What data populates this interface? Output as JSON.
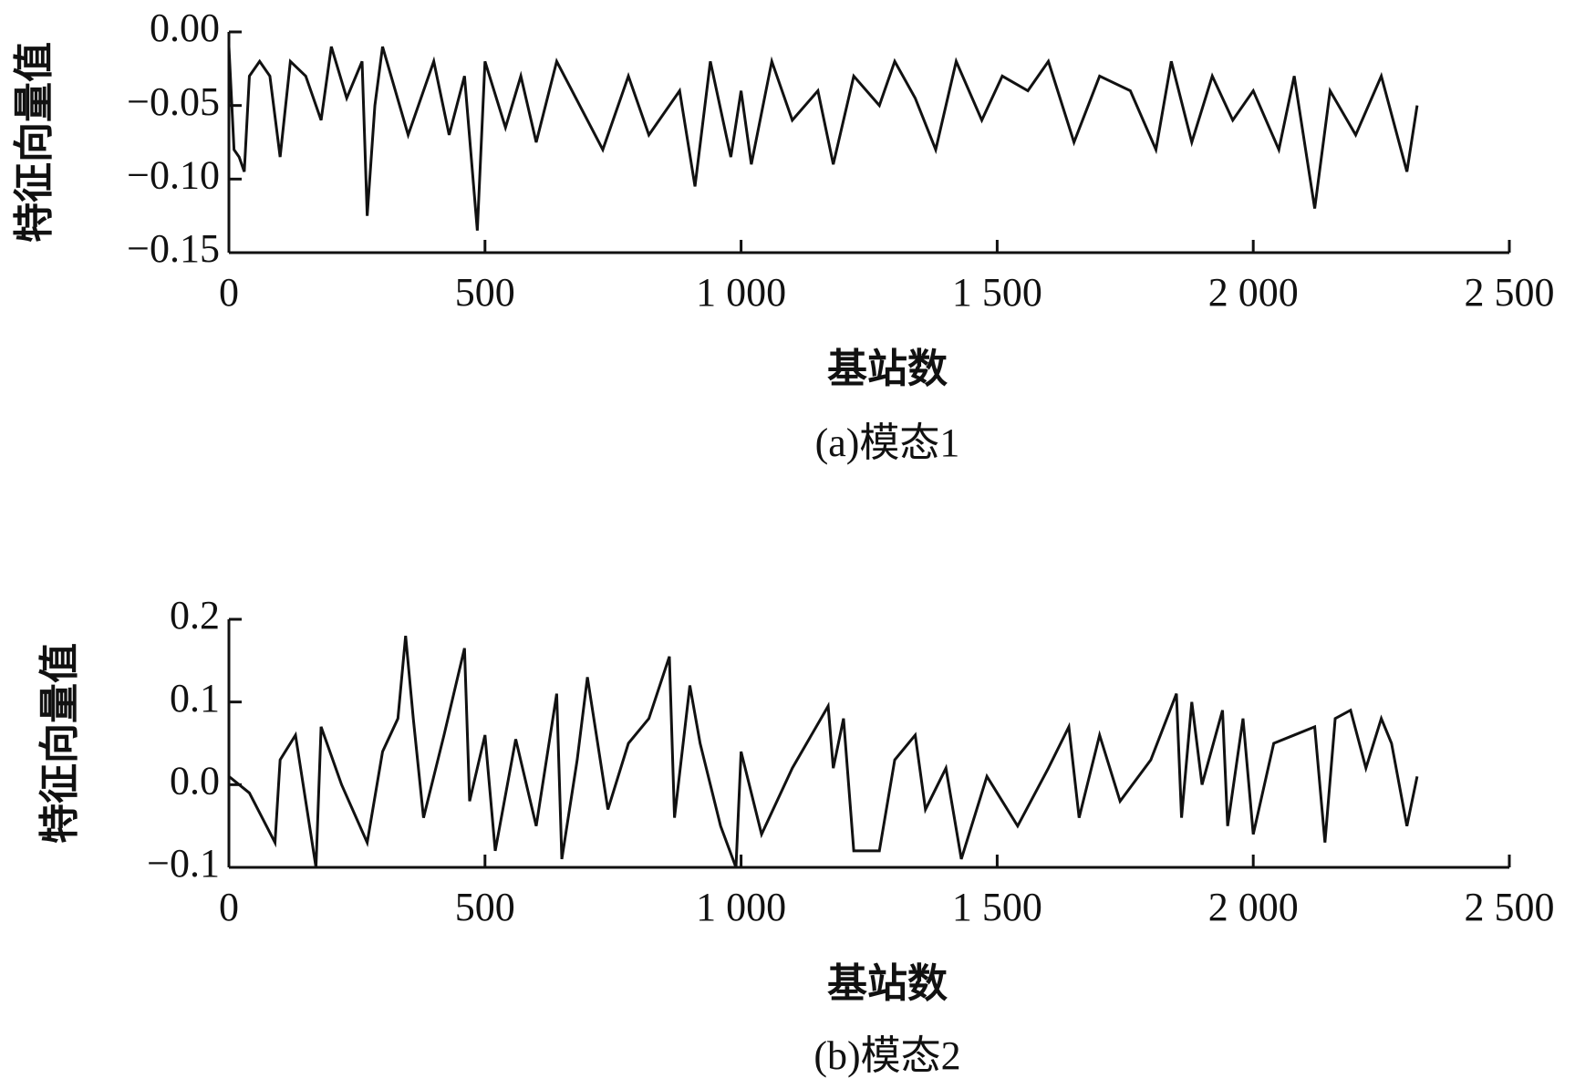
{
  "chart_data": [
    {
      "type": "line",
      "caption": "(a)模态1",
      "xlabel": "基站数",
      "ylabel": "特征向量值",
      "color": "#111111",
      "xlim": [
        0,
        2500
      ],
      "ylim": [
        -0.15,
        0
      ],
      "xticks": [
        0,
        500,
        {
          "value": 1000,
          "label": "1 000"
        },
        {
          "value": 1500,
          "label": "1 500"
        },
        {
          "value": 2000,
          "label": "2 000"
        },
        {
          "value": 2500,
          "label": "2 500"
        }
      ],
      "yticks": [
        {
          "value": 0,
          "label": "0.00"
        },
        {
          "value": -0.05,
          "label": "−0.05"
        },
        {
          "value": -0.1,
          "label": "−0.10"
        },
        {
          "value": -0.15,
          "label": "−0.15"
        }
      ],
      "x": [
        0,
        10,
        20,
        30,
        40,
        60,
        80,
        100,
        120,
        150,
        180,
        200,
        230,
        260,
        270,
        285,
        300,
        350,
        400,
        430,
        460,
        485,
        500,
        540,
        570,
        600,
        640,
        700,
        730,
        780,
        820,
        880,
        910,
        940,
        980,
        1000,
        1020,
        1060,
        1100,
        1150,
        1180,
        1220,
        1270,
        1300,
        1340,
        1380,
        1420,
        1470,
        1510,
        1560,
        1600,
        1650,
        1700,
        1760,
        1810,
        1840,
        1880,
        1920,
        1960,
        2000,
        2050,
        2080,
        2120,
        2150,
        2200,
        2250,
        2300,
        2320
      ],
      "values": [
        -0.01,
        -0.08,
        -0.085,
        -0.095,
        -0.03,
        -0.02,
        -0.03,
        -0.085,
        -0.02,
        -0.03,
        -0.06,
        -0.01,
        -0.045,
        -0.02,
        -0.125,
        -0.05,
        -0.01,
        -0.07,
        -0.02,
        -0.07,
        -0.03,
        -0.135,
        -0.02,
        -0.065,
        -0.03,
        -0.075,
        -0.02,
        -0.06,
        -0.08,
        -0.03,
        -0.07,
        -0.04,
        -0.105,
        -0.02,
        -0.085,
        -0.04,
        -0.09,
        -0.02,
        -0.06,
        -0.04,
        -0.09,
        -0.03,
        -0.05,
        -0.02,
        -0.045,
        -0.08,
        -0.02,
        -0.06,
        -0.03,
        -0.04,
        -0.02,
        -0.075,
        -0.03,
        -0.04,
        -0.08,
        -0.02,
        -0.075,
        -0.03,
        -0.06,
        -0.04,
        -0.08,
        -0.03,
        -0.12,
        -0.04,
        -0.07,
        -0.03,
        -0.095,
        -0.05
      ]
    },
    {
      "type": "line",
      "caption": "(b)模态2",
      "xlabel": "基站数",
      "ylabel": "特征向量值",
      "color": "#111111",
      "xlim": [
        0,
        2500
      ],
      "ylim": [
        -0.1,
        0.2
      ],
      "xticks": [
        0,
        500,
        {
          "value": 1000,
          "label": "1 000"
        },
        {
          "value": 1500,
          "label": "1 500"
        },
        {
          "value": 2000,
          "label": "2 000"
        },
        {
          "value": 2500,
          "label": "2 500"
        }
      ],
      "yticks": [
        {
          "value": 0.2,
          "label": "0.2"
        },
        {
          "value": 0.1,
          "label": "0.1"
        },
        {
          "value": 0,
          "label": "0.0"
        },
        {
          "value": -0.1,
          "label": "−0.1"
        }
      ],
      "x": [
        0,
        40,
        90,
        100,
        130,
        150,
        170,
        180,
        220,
        270,
        300,
        330,
        345,
        360,
        380,
        420,
        460,
        470,
        500,
        520,
        560,
        600,
        640,
        650,
        680,
        700,
        740,
        780,
        820,
        860,
        870,
        900,
        920,
        960,
        990,
        1000,
        1040,
        1100,
        1170,
        1180,
        1200,
        1220,
        1270,
        1300,
        1340,
        1360,
        1400,
        1430,
        1480,
        1540,
        1600,
        1640,
        1660,
        1700,
        1740,
        1800,
        1850,
        1860,
        1880,
        1900,
        1940,
        1950,
        1980,
        2000,
        2040,
        2080,
        2120,
        2140,
        2160,
        2190,
        2220,
        2250,
        2270,
        2300,
        2320
      ],
      "values": [
        0.01,
        -0.01,
        -0.07,
        0.03,
        0.06,
        -0.02,
        -0.1,
        0.07,
        0.0,
        -0.07,
        0.04,
        0.08,
        0.18,
        0.08,
        -0.04,
        0.06,
        0.165,
        -0.02,
        0.06,
        -0.08,
        0.055,
        -0.05,
        0.11,
        -0.09,
        0.03,
        0.13,
        -0.03,
        0.05,
        0.08,
        0.155,
        -0.04,
        0.12,
        0.05,
        -0.05,
        -0.1,
        0.04,
        -0.06,
        0.02,
        0.095,
        0.02,
        0.08,
        -0.08,
        -0.08,
        0.03,
        0.06,
        -0.03,
        0.02,
        -0.09,
        0.01,
        -0.05,
        0.02,
        0.07,
        -0.04,
        0.06,
        -0.02,
        0.03,
        0.11,
        -0.04,
        0.1,
        0.0,
        0.09,
        -0.05,
        0.08,
        -0.06,
        0.05,
        0.06,
        0.07,
        -0.07,
        0.08,
        0.09,
        0.02,
        0.08,
        0.05,
        -0.05,
        0.01
      ]
    }
  ]
}
